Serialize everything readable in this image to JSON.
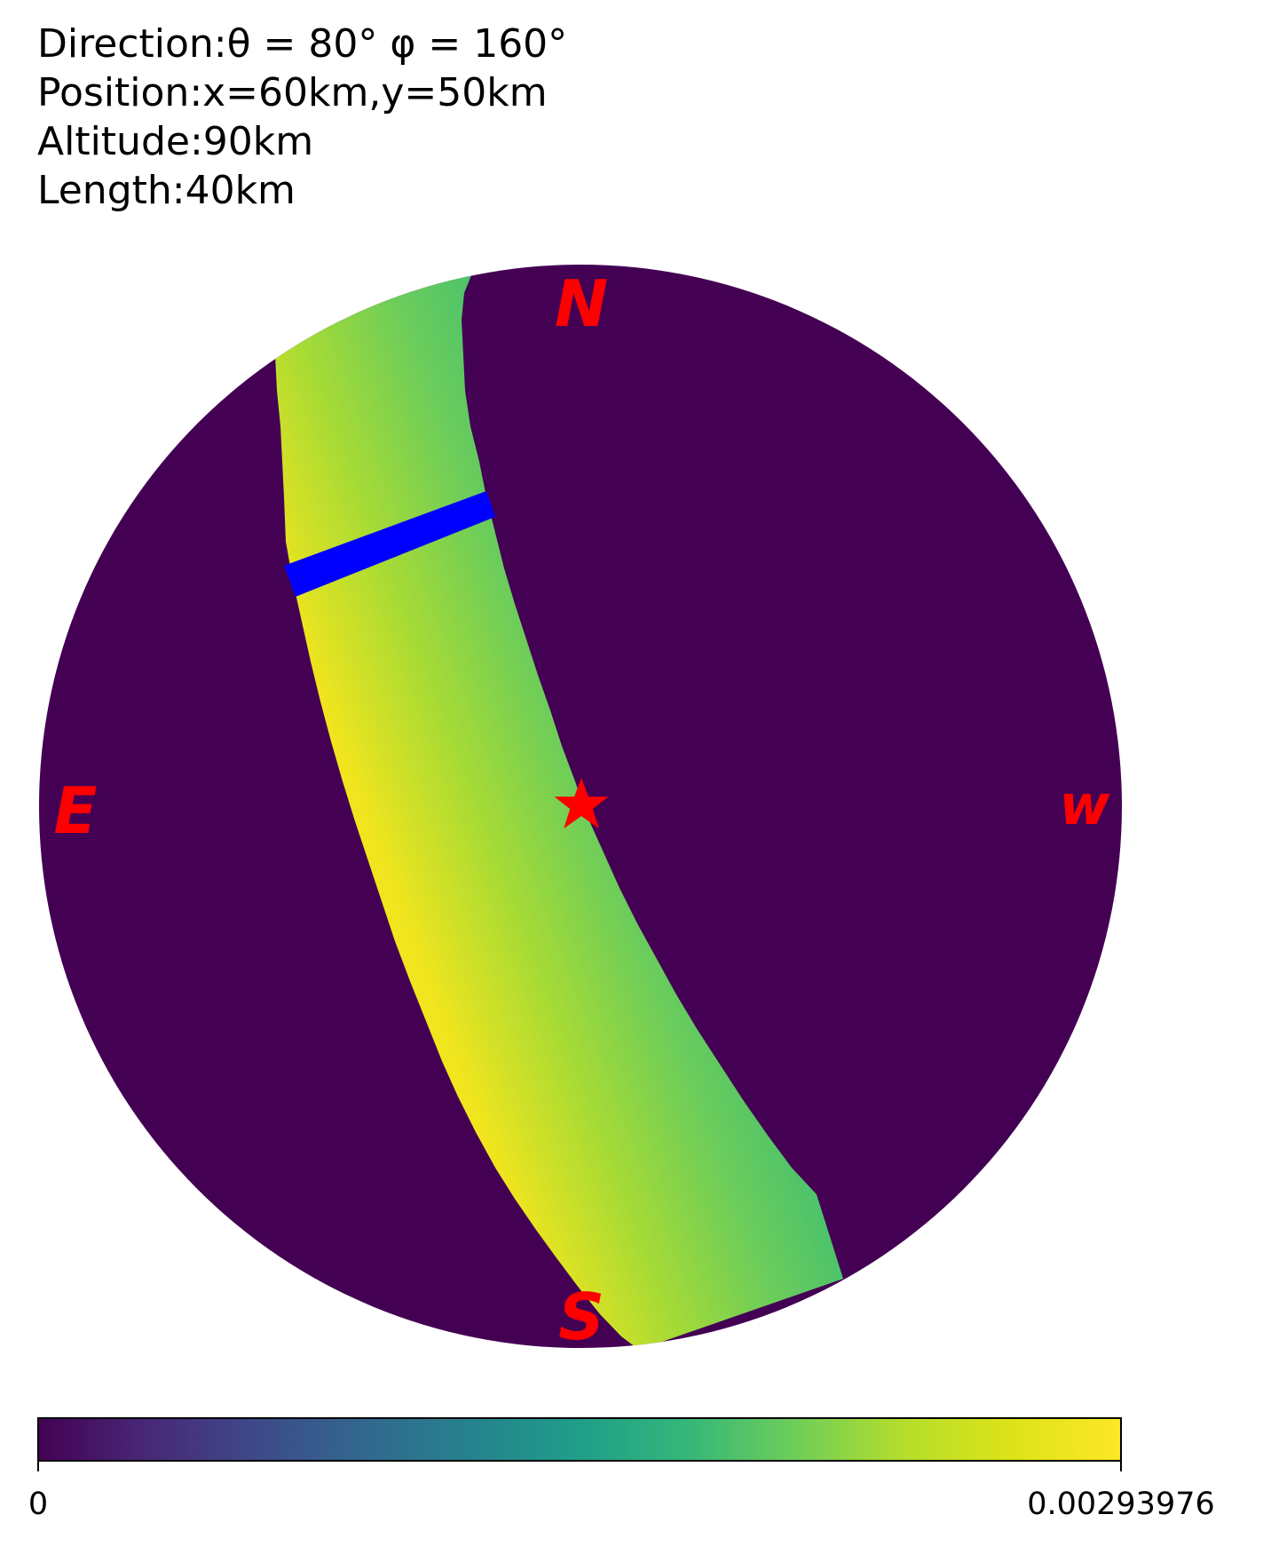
{
  "header": {
    "direction": "Direction:θ = 80° φ = 160°",
    "position": "Position:x=60km,y=50km",
    "altitude": "Altitude:90km",
    "length": "Length:40km"
  },
  "compass": {
    "north": "N",
    "south": "S",
    "east": "E",
    "west": "w"
  },
  "colorbar": {
    "min_label": "0",
    "max_label": "0.00293976",
    "colormap": "viridis"
  },
  "colors": {
    "background_disk": "#440154",
    "compass_text": "#ff0000",
    "segment": "#0000ff",
    "station_star": "#ff0000"
  }
}
